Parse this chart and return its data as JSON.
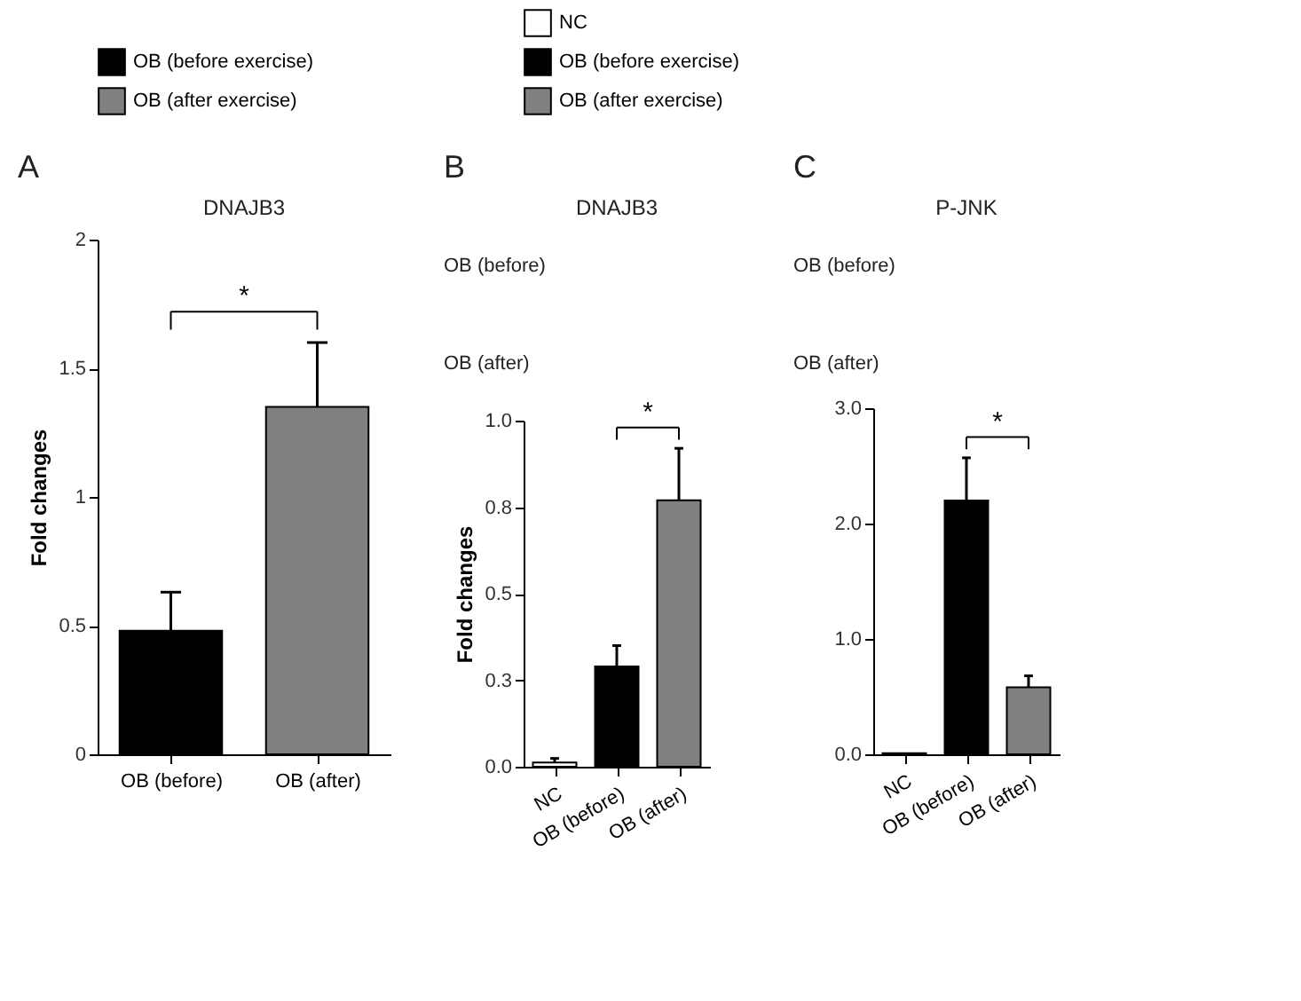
{
  "chart_data": [
    {
      "type": "bar",
      "title": "DNAJB3",
      "categories": [
        "OB (before)",
        "OB (after)"
      ],
      "ylabel": "Fold changes",
      "ylim": [
        0,
        2
      ],
      "yticks": [
        0,
        0.5,
        1,
        1.5,
        2
      ],
      "grid": false,
      "legend": "top",
      "series": [
        {
          "name": "OB (before exercise)",
          "color": "#000000",
          "values": [
            0.48,
            null
          ],
          "errors": [
            0.15,
            null
          ]
        },
        {
          "name": "OB (after exercise)",
          "color": "#808080",
          "values": [
            null,
            1.35
          ],
          "errors": [
            null,
            0.25
          ]
        }
      ],
      "annotations": [
        "A",
        "*"
      ]
    },
    {
      "type": "bar",
      "title": "DNAJB3",
      "categories": [
        "NC",
        "OB (before)",
        "OB (after)"
      ],
      "ylabel": "Fold changes",
      "ylim": [
        0,
        1
      ],
      "yticks": [
        {
          "value": 0,
          "label": "0.0"
        },
        {
          "value": 0.25,
          "label": "0.3"
        },
        0.5,
        {
          "value": 0.75,
          "label": "0.8"
        },
        {
          "value": 1,
          "label": "1.0"
        }
      ],
      "grid": false,
      "legend": "top",
      "series": [
        {
          "name": "NC",
          "color": "#ffffff",
          "values": [
            0.012,
            null,
            null
          ],
          "errors": [
            0.012,
            null,
            null
          ]
        },
        {
          "name": "OB (before exercise)",
          "color": "#000000",
          "values": [
            null,
            0.29,
            null
          ],
          "errors": [
            null,
            0.06,
            null
          ]
        },
        {
          "name": "OB (after exercise)",
          "color": "#808080",
          "values": [
            null,
            null,
            0.77
          ],
          "errors": [
            null,
            null,
            0.15
          ]
        }
      ],
      "annotations": [
        "B",
        "OB (before)",
        "OB (after)",
        "*"
      ]
    },
    {
      "type": "bar",
      "title": "P-JNK",
      "categories": [
        "NC",
        "OB (before)",
        "OB (after)"
      ],
      "ylim": [
        0,
        3
      ],
      "yticks": [
        {
          "value": 0,
          "label": "0.0"
        },
        {
          "value": 1,
          "label": "1.0"
        },
        {
          "value": 2,
          "label": "2.0"
        },
        {
          "value": 3,
          "label": "3.0"
        }
      ],
      "grid": false,
      "legend": false,
      "series": [
        {
          "color": "#ffffff",
          "values": [
            0.01,
            null,
            null
          ]
        },
        {
          "color": "#000000",
          "values": [
            null,
            2.2,
            null
          ],
          "errors": [
            null,
            0.37,
            null
          ]
        },
        {
          "color": "#808080",
          "values": [
            null,
            null,
            0.58
          ],
          "errors": [
            null,
            null,
            0.1
          ]
        }
      ],
      "annotations": [
        "C",
        "OB (before)",
        "OB (after)",
        "*"
      ]
    }
  ]
}
